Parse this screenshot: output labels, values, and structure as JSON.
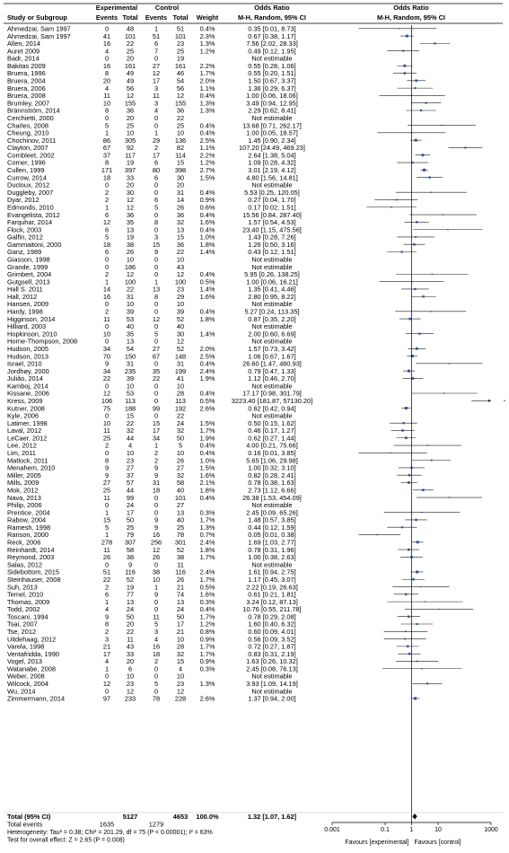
{
  "header": {
    "study_or_subgroup": "Study or Subgroup",
    "experimental": "Experimental",
    "control": "Control",
    "events": "Events",
    "total": "Total",
    "weight": "Weight",
    "odds_ratio": "Odds Ratio",
    "method": "M-H, Random, 95% CI"
  },
  "footer": {
    "total_events_label": "Total events",
    "heterogeneity": "Heterogeneity: Tau² = 0.38; Chi² = 201.29, df = 75 (P < 0.00001); I² = 63%",
    "overall_effect": "Test for overall effect: Z = 2.65 (P = 0.008)",
    "favours_left": "Favours [experimental]",
    "favours_right": "Favours [control]"
  },
  "chart_data": {
    "type": "forest",
    "scale": "log",
    "xlim": [
      0.001,
      1000
    ],
    "ticks": [
      0.001,
      0.1,
      1,
      10,
      1000
    ],
    "tick_labels": [
      "0.001",
      "0.1",
      "1",
      "10",
      "1000"
    ],
    "studies": [
      [
        "Ahmedzai, Sam 1997",
        "0",
        "48",
        "1",
        "51",
        "0.4%",
        "0.35 [0.01, 8.73]",
        0.35,
        0.01,
        8.73
      ],
      [
        "Ahmedzai, Sam 1997",
        "41",
        "101",
        "51",
        "101",
        "2.3%",
        "0.67 [0.38, 1.17]",
        0.67,
        0.38,
        1.17
      ],
      [
        "Allen, 2014",
        "16",
        "22",
        "6",
        "23",
        "1.3%",
        "7.56 [2.02, 28.33]",
        7.56,
        2.02,
        28.33
      ],
      [
        "Auret 2009",
        "4",
        "25",
        "7",
        "25",
        "1.2%",
        "0.49 [0.12, 1.95]",
        0.49,
        0.12,
        1.95
      ],
      [
        "Badr, 2014",
        "0",
        "20",
        "0",
        "19",
        "",
        "Not estimable",
        null,
        null,
        null
      ],
      [
        "Bakitas 2009",
        "16",
        "161",
        "27",
        "161",
        "2.2%",
        "0.55 [0.28, 1.06]",
        0.55,
        0.28,
        1.06
      ],
      [
        "Bruera, 1996",
        "8",
        "49",
        "12",
        "46",
        "1.7%",
        "0.55 [0.20, 1.51]",
        0.55,
        0.2,
        1.51
      ],
      [
        "Bruera, 2004",
        "20",
        "49",
        "17",
        "54",
        "2.0%",
        "1.50 [0.67, 3.37]",
        1.5,
        0.67,
        3.37
      ],
      [
        "Bruera, 2006",
        "4",
        "56",
        "3",
        "56",
        "1.1%",
        "1.36 [0.29, 6.37]",
        1.36,
        0.29,
        6.37
      ],
      [
        "Bruera, 2008",
        "11",
        "12",
        "11",
        "12",
        "0.4%",
        "1.00 [0.06, 18.06]",
        1.0,
        0.06,
        18.06
      ],
      [
        "Brumley, 2007",
        "10",
        "155",
        "3",
        "155",
        "1.3%",
        "3.49 [0.94, 12.95]",
        3.49,
        0.94,
        12.95
      ],
      [
        "Brännström, 2014",
        "8",
        "36",
        "4",
        "36",
        "1.3%",
        "2.29 [0.62, 8.41]",
        2.29,
        0.62,
        8.41
      ],
      [
        "Cerchietti, 2000",
        "0",
        "20",
        "0",
        "22",
        "",
        "Not estimable",
        null,
        null,
        null
      ],
      [
        "Charles, 2008",
        "5",
        "25",
        "0",
        "25",
        "0.4%",
        "13.68 [0.71, 262.17]",
        13.68,
        0.71,
        262.17
      ],
      [
        "Cheung, 2010",
        "1",
        "10",
        "1",
        "10",
        "0.4%",
        "1.00 [0.05, 18.57]",
        1.0,
        0.05,
        18.57
      ],
      [
        "Chochinov, 2011",
        "86",
        "305",
        "29",
        "136",
        "2.5%",
        "1.45 [0.90, 2.34]",
        1.45,
        0.9,
        2.34
      ],
      [
        "Clayton, 2007",
        "67",
        "92",
        "2",
        "82",
        "1.1%",
        "107.20 [24.49, 469.23]",
        107.2,
        24.49,
        469.23
      ],
      [
        "Cornbleet, 2002",
        "37",
        "117",
        "17",
        "114",
        "2.2%",
        "2.64 [1.38, 5.04]",
        2.64,
        1.38,
        5.04
      ],
      [
        "Corner, 1996",
        "8",
        "19",
        "6",
        "15",
        "1.2%",
        "1.09 [0.28, 4.32]",
        1.09,
        0.28,
        4.32
      ],
      [
        "Cullen, 1999",
        "171",
        "397",
        "80",
        "398",
        "2.7%",
        "3.01 [2.19, 4.12]",
        3.01,
        2.19,
        4.12
      ],
      [
        "Currow, 2014",
        "18",
        "33",
        "6",
        "30",
        "1.5%",
        "4.80 [1.56, 14.81]",
        4.8,
        1.56,
        14.81
      ],
      [
        "Ducloux, 2012",
        "0",
        "20",
        "0",
        "20",
        "",
        "Not estimable",
        null,
        null,
        null
      ],
      [
        "Duggleby, 2007",
        "2",
        "30",
        "0",
        "31",
        "0.4%",
        "5.53 [0.25, 120.05]",
        5.53,
        0.25,
        120.05
      ],
      [
        "Dyar, 2012",
        "2",
        "12",
        "6",
        "14",
        "0.9%",
        "0.27 [0.04, 1.70]",
        0.27,
        0.04,
        1.7
      ],
      [
        "Edmonds, 2010",
        "1",
        "12",
        "5",
        "26",
        "0.6%",
        "0.17 [0.02, 1.51]",
        0.17,
        0.02,
        1.51
      ],
      [
        "Evangelista, 2012",
        "6",
        "36",
        "0",
        "36",
        "0.4%",
        "15.56 [0.84, 287.40]",
        15.56,
        0.84,
        287.4
      ],
      [
        "Farquhar, 2014",
        "12",
        "35",
        "8",
        "32",
        "1.6%",
        "1.57 [0.54, 4.53]",
        1.57,
        0.54,
        4.53
      ],
      [
        "Flock, 2003",
        "6",
        "13",
        "0",
        "13",
        "0.4%",
        "23.40 [1.15, 475.56]",
        23.4,
        1.15,
        475.56
      ],
      [
        "Galfin, 2012",
        "5",
        "19",
        "3",
        "15",
        "1.0%",
        "1.43 [0.28, 7.26]",
        1.43,
        0.28,
        7.26
      ],
      [
        "Gammaitoni, 2000",
        "18",
        "38",
        "15",
        "36",
        "1.8%",
        "1.26 [0.50, 3.16]",
        1.26,
        0.5,
        3.16
      ],
      [
        "Ganz, 1989",
        "6",
        "26",
        "9",
        "22",
        "1.4%",
        "0.43 [0.12, 1.51]",
        0.43,
        0.12,
        1.51
      ],
      [
        "Giasson, 1998",
        "0",
        "10",
        "0",
        "10",
        "",
        "Not estimable",
        null,
        null,
        null
      ],
      [
        "Grande, 1999",
        "0",
        "186",
        "0",
        "43",
        "",
        "Not estimable",
        null,
        null,
        null
      ],
      [
        "Grimbert, 2004",
        "2",
        "12",
        "0",
        "12",
        "0.4%",
        "5.95 [0.26, 138.25]",
        5.95,
        0.26,
        138.25
      ],
      [
        "Gutgsell, 2013",
        "1",
        "100",
        "1",
        "100",
        "0.5%",
        "1.00 [0.06, 16.21]",
        1.0,
        0.06,
        16.21
      ],
      [
        "Hall S. 2011",
        "14",
        "22",
        "13",
        "23",
        "1.4%",
        "1.35 [0.41, 4.46]",
        1.35,
        0.41,
        4.46
      ],
      [
        "Hall, 2012",
        "16",
        "31",
        "8",
        "29",
        "1.6%",
        "2.80 [0.95, 8.22]",
        2.8,
        0.95,
        8.22
      ],
      [
        "Hansen, 2009",
        "0",
        "10",
        "0",
        "10",
        "",
        "Not estimable",
        null,
        null,
        null
      ],
      [
        "Hardy, 1998",
        "2",
        "39",
        "0",
        "39",
        "0.4%",
        "5.27 [0.24, 113.35]",
        5.27,
        0.24,
        113.35
      ],
      [
        "Higginson, 2014",
        "11",
        "53",
        "12",
        "52",
        "1.8%",
        "0.87 [0.35, 2.20]",
        0.87,
        0.35,
        2.2
      ],
      [
        "Hilliard, 2003",
        "0",
        "40",
        "0",
        "40",
        "",
        "Not estimable",
        null,
        null,
        null
      ],
      [
        "Hopkinson, 2010",
        "10",
        "35",
        "5",
        "30",
        "1.4%",
        "2.00 [0.60, 6.69]",
        2.0,
        0.6,
        6.69
      ],
      [
        "Horne-Thompson, 2008",
        "0",
        "13",
        "0",
        "12",
        "",
        "Not estimable",
        null,
        null,
        null
      ],
      [
        "Hudson, 2005",
        "34",
        "54",
        "27",
        "52",
        "2.0%",
        "1.57 [0.73, 3.42]",
        1.57,
        0.73,
        3.42
      ],
      [
        "Hudson, 2013",
        "70",
        "150",
        "67",
        "148",
        "2.5%",
        "1.06 [0.67, 1.67]",
        1.06,
        0.67,
        1.67
      ],
      [
        "Israel, 2010",
        "9",
        "31",
        "0",
        "31",
        "0.4%",
        "26.60 [1.47, 480.93]",
        26.6,
        1.47,
        480.93
      ],
      [
        "Jordhøy, 2000",
        "34",
        "235",
        "35",
        "199",
        "2.4%",
        "0.79 [0.47, 1.33]",
        0.79,
        0.47,
        1.33
      ],
      [
        "Julião, 2014",
        "22",
        "39",
        "22",
        "41",
        "1.9%",
        "1.12 [0.46, 2.70]",
        1.12,
        0.46,
        2.7
      ],
      [
        "Kamboj, 2014",
        "0",
        "10",
        "0",
        "10",
        "",
        "Not estimable",
        null,
        null,
        null
      ],
      [
        "Kissane, 2006",
        "12",
        "53",
        "0",
        "28",
        "0.4%",
        "17.17 [0.98, 301.79]",
        17.17,
        0.98,
        301.79
      ],
      [
        "Kress, 2009",
        "106",
        "113",
        "0",
        "113",
        "0.5%",
        "3223.40 [181.87, 57130.20]",
        3223.4,
        181.87,
        57130.2
      ],
      [
        "Kutner, 2008",
        "75",
        "188",
        "99",
        "192",
        "2.6%",
        "0.62 [0.42, 0.94]",
        0.62,
        0.42,
        0.94
      ],
      [
        "Kyle, 2006",
        "0",
        "15",
        "0",
        "22",
        "",
        "Not estimable",
        null,
        null,
        null
      ],
      [
        "Latimer, 1998",
        "10",
        "22",
        "15",
        "24",
        "1.5%",
        "0.50 [0.15, 1.62]",
        0.5,
        0.15,
        1.62
      ],
      [
        "Laval, 2012",
        "11",
        "32",
        "17",
        "32",
        "1.7%",
        "0.46 [0.17, 1.27]",
        0.46,
        0.17,
        1.27
      ],
      [
        "LeCaer, 2012",
        "25",
        "44",
        "34",
        "50",
        "1.9%",
        "0.62 [0.27, 1.44]",
        0.62,
        0.27,
        1.44
      ],
      [
        "Lee, 2012",
        "2",
        "4",
        "1",
        "5",
        "0.4%",
        "4.00 [0.21, 75.66]",
        4.0,
        0.21,
        75.66
      ],
      [
        "Lim, 2011",
        "0",
        "10",
        "2",
        "10",
        "0.4%",
        "0.16 [0.01, 3.85]",
        0.16,
        0.01,
        3.85
      ],
      [
        "Matlock, 2011",
        "8",
        "23",
        "2",
        "26",
        "1.0%",
        "5.65 [1.06, 29.98]",
        5.65,
        1.06,
        29.98
      ],
      [
        "Menahem, 2010",
        "9",
        "27",
        "9",
        "27",
        "1.5%",
        "1.00 [0.32, 3.10]",
        1.0,
        0.32,
        3.1
      ],
      [
        "Miller, 2005",
        "9",
        "37",
        "9",
        "32",
        "1.6%",
        "0.82 [0.28, 2.41]",
        0.82,
        0.28,
        2.41
      ],
      [
        "Mills, 2009",
        "27",
        "57",
        "31",
        "58",
        "2.1%",
        "0.78 [0.38, 1.63]",
        0.78,
        0.38,
        1.63
      ],
      [
        "Mok, 2012",
        "25",
        "44",
        "18",
        "40",
        "1.8%",
        "2.73 [1.12, 6.66]",
        2.73,
        1.12,
        6.66
      ],
      [
        "Nava, 2013",
        "11",
        "99",
        "0",
        "101",
        "0.4%",
        "26.38 [1.53, 454.09]",
        26.38,
        1.53,
        454.09
      ],
      [
        "Philip, 2006",
        "0",
        "24",
        "0",
        "27",
        "",
        "Not estimable",
        null,
        null,
        null
      ],
      [
        "Prentice, 2004",
        "1",
        "17",
        "0",
        "13",
        "0.3%",
        "2.45 [0.09, 65.26]",
        2.45,
        0.09,
        65.26
      ],
      [
        "Rabow, 2004",
        "15",
        "50",
        "9",
        "40",
        "1.7%",
        "1.48 [0.57, 3.85]",
        1.48,
        0.57,
        3.85
      ],
      [
        "Ramesh, 1998",
        "5",
        "25",
        "9",
        "25",
        "1.3%",
        "0.44 [0.12, 1.59]",
        0.44,
        0.12,
        1.59
      ],
      [
        "Ranson, 2000",
        "1",
        "79",
        "16",
        "78",
        "0.7%",
        "0.05 [0.01, 0.38]",
        0.05,
        0.01,
        0.38
      ],
      [
        "Reck, 2006",
        "278",
        "307",
        "256",
        "301",
        "2.4%",
        "1.69 [1.03, 2.77]",
        1.69,
        1.03,
        2.77
      ],
      [
        "Reinhardt, 2014",
        "11",
        "58",
        "12",
        "52",
        "1.8%",
        "0.78 [0.31, 1.96]",
        0.78,
        0.31,
        1.96
      ],
      [
        "Reymond, 2003",
        "26",
        "38",
        "26",
        "38",
        "1.7%",
        "1.00 [0.38, 2.63]",
        1.0,
        0.38,
        2.63
      ],
      [
        "Salas, 2012",
        "0",
        "9",
        "0",
        "11",
        "",
        "Not estimable",
        null,
        null,
        null
      ],
      [
        "Sidebottom, 2015",
        "51",
        "116",
        "38",
        "116",
        "2.4%",
        "1.61 [0.94, 2.75]",
        1.61,
        0.94,
        2.75
      ],
      [
        "Steinhauser, 2008",
        "22",
        "52",
        "10",
        "26",
        "1.7%",
        "1.17 [0.45, 3.07]",
        1.17,
        0.45,
        3.07
      ],
      [
        "Suh, 2013",
        "2",
        "19",
        "1",
        "21",
        "0.5%",
        "2.22 [0.19, 26.63]",
        2.22,
        0.19,
        26.63
      ],
      [
        "Temel, 2010",
        "6",
        "77",
        "9",
        "74",
        "1.6%",
        "0.61 [0.21, 1.81]",
        0.61,
        0.21,
        1.81
      ],
      [
        "Thomas, 2009",
        "1",
        "13",
        "0",
        "13",
        "0.3%",
        "3.24 [0.12, 87.13]",
        3.24,
        0.12,
        87.13
      ],
      [
        "Todd, 2002",
        "4",
        "24",
        "0",
        "24",
        "0.4%",
        "10.76 [0.55, 211.78]",
        10.76,
        0.55,
        211.78
      ],
      [
        "Toscani, 1994",
        "9",
        "50",
        "11",
        "50",
        "1.7%",
        "0.78 [0.29, 2.08]",
        0.78,
        0.29,
        2.08
      ],
      [
        "Tsai, 2007",
        "8",
        "20",
        "5",
        "17",
        "1.2%",
        "1.60 [0.40, 6.32]",
        1.6,
        0.4,
        6.32
      ],
      [
        "Tse, 2012",
        "2",
        "22",
        "3",
        "21",
        "0.8%",
        "0.60 [0.09, 4.01]",
        0.6,
        0.09,
        4.01
      ],
      [
        "Uitdehaag, 2012",
        "3",
        "11",
        "4",
        "10",
        "0.9%",
        "0.56 [0.09, 3.52]",
        0.56,
        0.09,
        3.52
      ],
      [
        "Varela, 1998",
        "21",
        "43",
        "16",
        "28",
        "1.7%",
        "0.72 [0.27, 1.87]",
        0.72,
        0.27,
        1.87
      ],
      [
        "Ventafridda, 1990",
        "17",
        "33",
        "18",
        "32",
        "1.7%",
        "0.83 [0.31, 2.19]",
        0.83,
        0.31,
        2.19
      ],
      [
        "Vogel, 2013",
        "4",
        "20",
        "2",
        "15",
        "0.9%",
        "1.63 [0.26, 10.32]",
        1.63,
        0.26,
        10.32
      ],
      [
        "Watanabe, 2008",
        "1",
        "6",
        "0",
        "4",
        "0.3%",
        "2.45 [0.08, 76.13]",
        2.45,
        0.08,
        76.13
      ],
      [
        "Weber, 2008",
        "0",
        "10",
        "0",
        "10",
        "",
        "Not estimable",
        null,
        null,
        null
      ],
      [
        "Wilcock, 2004",
        "12",
        "23",
        "5",
        "23",
        "1.3%",
        "3.93 [1.09, 14.19]",
        3.93,
        1.09,
        14.19
      ],
      [
        "Wu, 2014",
        "0",
        "12",
        "0",
        "12",
        "",
        "Not estimable",
        null,
        null,
        null
      ],
      [
        "Zimmermann, 2014",
        "97",
        "233",
        "78",
        "228",
        "2.6%",
        "1.37 [0.94, 2.00]",
        1.37,
        0.94,
        2.0
      ]
    ],
    "total": {
      "label": "Total (95% CI)",
      "e_total": "5127",
      "c_total": "4653",
      "weight": "100.0%",
      "or_text": "1.32 [1.07, 1.62]",
      "or": 1.32,
      "lo": 1.07,
      "hi": 1.62,
      "e_events": "1635",
      "c_events": "1279"
    }
  }
}
